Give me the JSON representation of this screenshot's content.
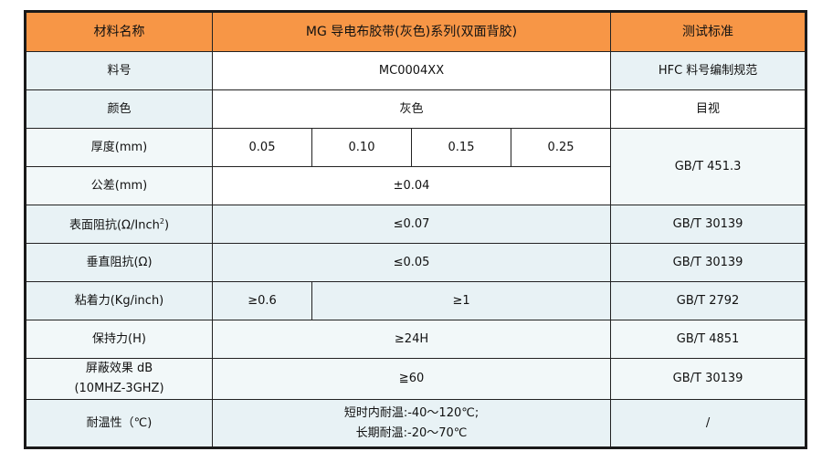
{
  "header": {
    "col1": "材料名称",
    "col2": "MG 导电布胶带(灰色)系列(双面背胶)",
    "col3": "测试标准"
  },
  "rows": [
    {
      "label": "料号",
      "value": "MC0004XX",
      "standard": "HFC 料号编制规范"
    },
    {
      "label": "颜色",
      "value": "灰色",
      "standard": "目视"
    },
    {
      "label": "厚度(mm)",
      "values": [
        "0.05",
        "0.10",
        "0.15",
        "0.25"
      ],
      "standard": "GB/T 451.3"
    },
    {
      "label": "公差(mm)",
      "value": "±0.04"
    },
    {
      "label": "表面阻抗(Ω/Inch",
      "label_sup": "2",
      "label_end": ")",
      "value": "≤0.07",
      "standard": "GB/T 30139"
    },
    {
      "label": "垂直阻抗(Ω)",
      "value": "≤0.05",
      "standard": "GB/T 30139"
    },
    {
      "label": "粘着力(Kg/inch)",
      "values": [
        "≥0.6",
        "≥1"
      ],
      "standard": "GB/T 2792"
    },
    {
      "label": "保持力(H)",
      "value": "≥24H",
      "standard": "GB/T 4851"
    },
    {
      "label": "屏蔽效果 dB",
      "label2": "(10MHZ-3GHZ)",
      "value": "≧60",
      "standard": "GB/T 30139"
    },
    {
      "label": "耐温性（℃)",
      "value": "短时内耐温:-40～120℃;",
      "value2": "长期耐温:-20～70℃",
      "standard": "/"
    }
  ],
  "colors": {
    "header": "#F79646",
    "row_tint": "#E8F2F5",
    "row_tint_light": "#F2F8F9"
  }
}
